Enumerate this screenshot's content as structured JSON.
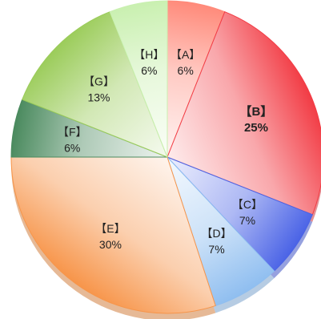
{
  "chart_data": {
    "type": "pie",
    "title": "",
    "slices": [
      {
        "label": "【A】",
        "value": 6,
        "display": "6%",
        "color": "#ff8a7a",
        "emphasis": false
      },
      {
        "label": "【B】",
        "value": 25,
        "display": "25%",
        "color": "#f23c45",
        "emphasis": true
      },
      {
        "label": "【C】",
        "value": 7,
        "display": "7%",
        "color": "#4a63e6",
        "emphasis": false
      },
      {
        "label": "【D】",
        "value": 7,
        "display": "7%",
        "color": "#8fbef0",
        "emphasis": false
      },
      {
        "label": "【E】",
        "value": 30,
        "display": "30%",
        "color": "#f7954a",
        "emphasis": false
      },
      {
        "label": "【F】",
        "value": 6,
        "display": "6%",
        "color": "#4a8a5e",
        "emphasis": false
      },
      {
        "label": "【G】",
        "value": 13,
        "display": "13%",
        "color": "#9bcc5a",
        "emphasis": false
      },
      {
        "label": "【H】",
        "value": 6,
        "display": "6%",
        "color": "#c9f0b0",
        "emphasis": false
      }
    ],
    "start_angle_deg": 0,
    "direction": "clockwise",
    "legend": "none"
  }
}
